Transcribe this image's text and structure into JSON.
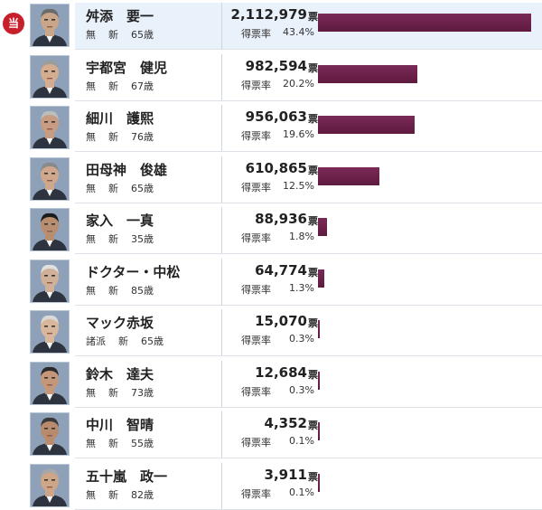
{
  "winner_label": "当",
  "vote_unit": "票",
  "rate_label": "得票率",
  "candidates": [
    {
      "name": "舛添　要一",
      "party": "無",
      "status": "新",
      "age": "65歳",
      "votes": "2,112,979",
      "rate": "43.4%",
      "share": 43.4,
      "winner": true
    },
    {
      "name": "宇都宮　健児",
      "party": "無",
      "status": "新",
      "age": "67歳",
      "votes": "982,594",
      "rate": "20.2%",
      "share": 20.2,
      "winner": false
    },
    {
      "name": "細川　護熙",
      "party": "無",
      "status": "新",
      "age": "76歳",
      "votes": "956,063",
      "rate": "19.6%",
      "share": 19.6,
      "winner": false
    },
    {
      "name": "田母神　俊雄",
      "party": "無",
      "status": "新",
      "age": "65歳",
      "votes": "610,865",
      "rate": "12.5%",
      "share": 12.5,
      "winner": false
    },
    {
      "name": "家入　一真",
      "party": "無",
      "status": "新",
      "age": "35歳",
      "votes": "88,936",
      "rate": "1.8%",
      "share": 1.8,
      "winner": false
    },
    {
      "name": "ドクター・中松",
      "party": "無",
      "status": "新",
      "age": "85歳",
      "votes": "64,774",
      "rate": "1.3%",
      "share": 1.3,
      "winner": false
    },
    {
      "name": "マック赤坂",
      "party": "諸派",
      "status": "新",
      "age": "65歳",
      "votes": "15,070",
      "rate": "0.3%",
      "share": 0.3,
      "winner": false
    },
    {
      "name": "鈴木　達夫",
      "party": "無",
      "status": "新",
      "age": "73歳",
      "votes": "12,684",
      "rate": "0.3%",
      "share": 0.3,
      "winner": false
    },
    {
      "name": "中川　智晴",
      "party": "無",
      "status": "新",
      "age": "55歳",
      "votes": "4,352",
      "rate": "0.1%",
      "share": 0.1,
      "winner": false
    },
    {
      "name": "五十嵐　政一",
      "party": "無",
      "status": "新",
      "age": "82歳",
      "votes": "3,911",
      "rate": "0.1%",
      "share": 0.1,
      "winner": false
    }
  ],
  "colors": {
    "bar": "#6b1e49",
    "winner_badge": "#c8202a",
    "highlight": "#e9f1fb"
  }
}
